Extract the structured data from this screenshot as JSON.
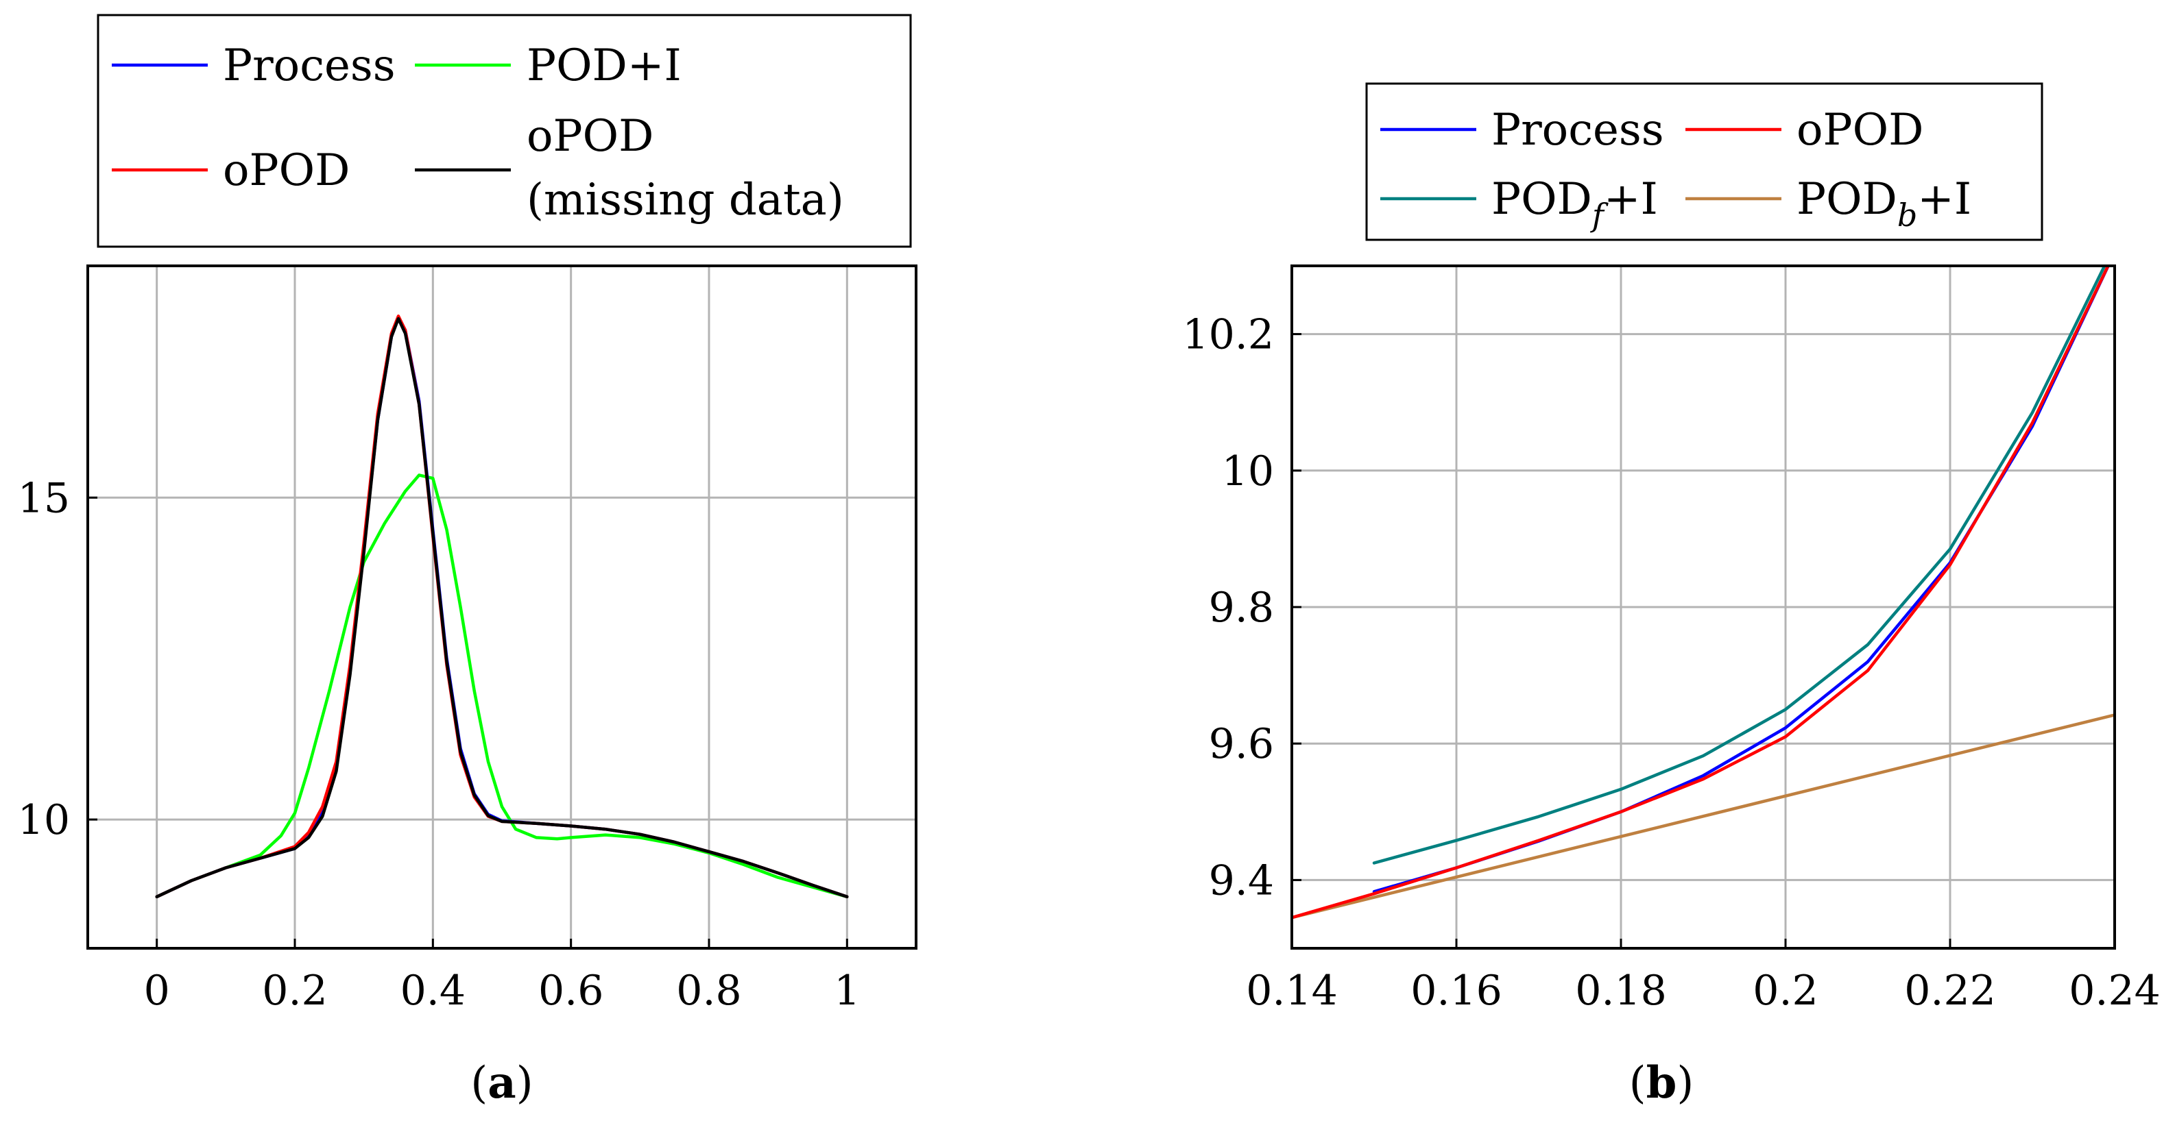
{
  "chart_data": [
    {
      "type": "line",
      "panel": "a",
      "caption": {
        "open": "(",
        "letter": "a",
        "close": ")"
      },
      "xlim": [
        -0.1,
        1.1
      ],
      "ylim": [
        8.0,
        18.6
      ],
      "xticks": [
        0,
        0.2,
        0.4,
        0.6,
        0.8,
        1
      ],
      "xtick_labels": [
        "0",
        "0.2",
        "0.4",
        "0.6",
        "0.8",
        "1"
      ],
      "yticks": [
        10,
        15
      ],
      "ytick_labels": [
        "10",
        "15"
      ],
      "grid": true,
      "legend": [
        {
          "name": "Process",
          "color": "#0000ff"
        },
        {
          "name": "POD+I",
          "color": "#00ff00"
        },
        {
          "name": "oPOD",
          "color": "#ff0000"
        },
        {
          "name": "oPOD",
          "name2": "(missing data)",
          "color": "#000000"
        }
      ],
      "series": [
        {
          "name": "POD+I",
          "color": "#00ff00",
          "x": [
            0,
            0.05,
            0.1,
            0.15,
            0.18,
            0.2,
            0.22,
            0.25,
            0.28,
            0.3,
            0.33,
            0.36,
            0.38,
            0.4,
            0.42,
            0.44,
            0.46,
            0.48,
            0.5,
            0.52,
            0.55,
            0.58,
            0.6,
            0.65,
            0.7,
            0.75,
            0.8,
            0.85,
            0.9,
            0.95,
            1.0
          ],
          "y": [
            8.8,
            9.05,
            9.25,
            9.45,
            9.75,
            10.1,
            10.8,
            12.0,
            13.3,
            14.0,
            14.6,
            15.1,
            15.35,
            15.3,
            14.5,
            13.3,
            12.0,
            10.9,
            10.2,
            9.85,
            9.72,
            9.7,
            9.72,
            9.76,
            9.72,
            9.62,
            9.48,
            9.3,
            9.1,
            8.95,
            8.8
          ]
        },
        {
          "name": "Process",
          "color": "#0000ff",
          "x": [
            0,
            0.05,
            0.1,
            0.15,
            0.2,
            0.22,
            0.24,
            0.26,
            0.28,
            0.3,
            0.32,
            0.34,
            0.35,
            0.36,
            0.38,
            0.4,
            0.42,
            0.44,
            0.46,
            0.48,
            0.5,
            0.55,
            0.6,
            0.65,
            0.7,
            0.75,
            0.8,
            0.85,
            0.9,
            0.95,
            1.0
          ],
          "y": [
            8.8,
            9.05,
            9.25,
            9.4,
            9.55,
            9.75,
            10.1,
            10.8,
            12.3,
            14.2,
            16.2,
            17.5,
            17.8,
            17.6,
            16.5,
            14.5,
            12.5,
            11.1,
            10.4,
            10.08,
            9.98,
            9.94,
            9.9,
            9.85,
            9.77,
            9.65,
            9.5,
            9.35,
            9.17,
            8.98,
            8.8
          ]
        },
        {
          "name": "oPOD",
          "color": "#ff0000",
          "x": [
            0,
            0.05,
            0.1,
            0.15,
            0.2,
            0.22,
            0.24,
            0.26,
            0.28,
            0.3,
            0.32,
            0.34,
            0.35,
            0.36,
            0.38,
            0.4,
            0.42,
            0.44,
            0.46,
            0.48,
            0.5,
            0.55,
            0.6,
            0.65,
            0.7,
            0.75,
            0.8,
            0.85,
            0.9,
            0.95,
            1.0
          ],
          "y": [
            8.8,
            9.05,
            9.25,
            9.4,
            9.58,
            9.8,
            10.2,
            10.9,
            12.4,
            14.3,
            16.3,
            17.55,
            17.82,
            17.6,
            16.45,
            14.4,
            12.4,
            11.0,
            10.35,
            10.05,
            9.97,
            9.94,
            9.9,
            9.85,
            9.77,
            9.65,
            9.5,
            9.35,
            9.17,
            8.98,
            8.8
          ]
        },
        {
          "name": "oPOD (missing data)",
          "color": "#000000",
          "x": [
            0,
            0.05,
            0.1,
            0.15,
            0.2,
            0.22,
            0.24,
            0.26,
            0.28,
            0.3,
            0.32,
            0.34,
            0.35,
            0.36,
            0.38,
            0.4,
            0.42,
            0.44,
            0.46,
            0.48,
            0.5,
            0.55,
            0.6,
            0.65,
            0.7,
            0.75,
            0.8,
            0.85,
            0.9,
            0.95,
            1.0
          ],
          "y": [
            8.8,
            9.05,
            9.25,
            9.4,
            9.55,
            9.72,
            10.05,
            10.75,
            12.25,
            14.15,
            16.2,
            17.5,
            17.78,
            17.55,
            16.45,
            14.45,
            12.45,
            11.05,
            10.38,
            10.06,
            9.97,
            9.94,
            9.9,
            9.85,
            9.77,
            9.65,
            9.5,
            9.35,
            9.17,
            8.98,
            8.8
          ]
        }
      ]
    },
    {
      "type": "line",
      "panel": "b",
      "caption": {
        "open": "(",
        "letter": "b",
        "close": ")"
      },
      "xlim": [
        0.14,
        0.24
      ],
      "ylim": [
        9.3,
        10.3
      ],
      "xticks": [
        0.14,
        0.16,
        0.18,
        0.2,
        0.22,
        0.24
      ],
      "xtick_labels": [
        "0.14",
        "0.16",
        "0.18",
        "0.2",
        "0.22",
        "0.24"
      ],
      "yticks": [
        9.4,
        9.6,
        9.8,
        10,
        10.2
      ],
      "ytick_labels": [
        "9.4",
        "9.6",
        "9.8",
        "10",
        "10.2"
      ],
      "grid": true,
      "legend": [
        {
          "name": "Process",
          "color": "#0000ff"
        },
        {
          "name": "oPOD",
          "color": "#ff0000"
        },
        {
          "name": "POD",
          "sub": "f",
          "suffix": "+I",
          "color": "#008080"
        },
        {
          "name": "POD",
          "sub": "b",
          "suffix": "+I",
          "color": "#bf8040"
        }
      ],
      "series": [
        {
          "name": "PODb+I",
          "color": "#bf8040",
          "x": [
            0.14,
            0.24
          ],
          "y": [
            9.345,
            9.642
          ]
        },
        {
          "name": "PODf+I",
          "color": "#008080",
          "x": [
            0.15,
            0.16,
            0.17,
            0.18,
            0.19,
            0.2,
            0.21,
            0.22,
            0.23,
            0.24
          ],
          "y": [
            9.425,
            9.458,
            9.493,
            9.533,
            9.582,
            9.65,
            9.745,
            9.885,
            10.085,
            10.33
          ]
        },
        {
          "name": "Process",
          "color": "#0000ff",
          "x": [
            0.15,
            0.16,
            0.17,
            0.18,
            0.19,
            0.2,
            0.21,
            0.22,
            0.23,
            0.24
          ],
          "y": [
            9.383,
            9.418,
            9.457,
            9.5,
            9.553,
            9.623,
            9.72,
            9.865,
            10.065,
            10.32
          ]
        },
        {
          "name": "oPOD",
          "color": "#ff0000",
          "x": [
            0.14,
            0.15,
            0.16,
            0.17,
            0.18,
            0.19,
            0.2,
            0.21,
            0.22,
            0.23,
            0.24
          ],
          "y": [
            9.345,
            9.38,
            9.418,
            9.458,
            9.5,
            9.548,
            9.61,
            9.707,
            9.862,
            10.07,
            10.32
          ]
        }
      ]
    }
  ]
}
